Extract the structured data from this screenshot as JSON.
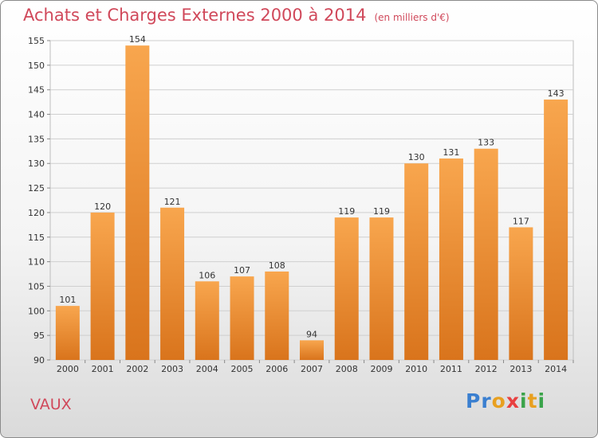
{
  "title": "Achats et Charges Externes 2000 à 2014",
  "subtitle": "(en milliers d'€)",
  "footer_label": "VAUX",
  "logo": {
    "letters": [
      "P",
      "r",
      "o",
      "x",
      "i",
      "t",
      "i"
    ],
    "colors": [
      "#3a7fd0",
      "#3a7fd0",
      "#e8a020",
      "#e84040",
      "#3aa34a",
      "#e8a020",
      "#3aa34a"
    ]
  },
  "chart_data": {
    "type": "bar",
    "categories": [
      "2000",
      "2001",
      "2002",
      "2003",
      "2004",
      "2005",
      "2006",
      "2007",
      "2008",
      "2009",
      "2010",
      "2011",
      "2012",
      "2013",
      "2014"
    ],
    "values": [
      101,
      120,
      154,
      121,
      106,
      107,
      108,
      94,
      119,
      119,
      130,
      131,
      133,
      117,
      143
    ],
    "ylim": [
      90,
      155
    ],
    "yticks": [
      90,
      95,
      100,
      105,
      110,
      115,
      120,
      125,
      130,
      135,
      140,
      145,
      150,
      155
    ],
    "grid": true,
    "bar_color_top": "#f8a64e",
    "bar_color_bottom": "#d9741c"
  }
}
